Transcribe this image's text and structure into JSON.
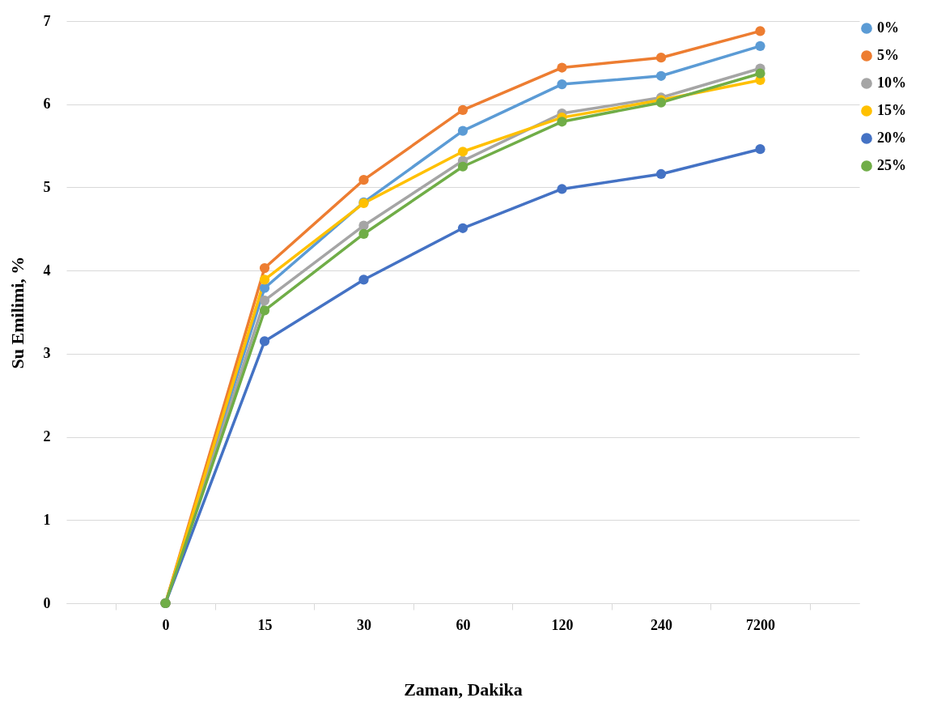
{
  "chart_data": {
    "type": "line",
    "xlabel": "Zaman, Dakika",
    "ylabel": "Su Emilimi, %",
    "categories": [
      "0",
      "15",
      "30",
      "60",
      "120",
      "240",
      "7200"
    ],
    "series": [
      {
        "name": "0%",
        "color": "#5b9bd5",
        "values": [
          0,
          3.79,
          4.82,
          5.68,
          6.24,
          6.34,
          6.7
        ]
      },
      {
        "name": "5%",
        "color": "#ed7d31",
        "values": [
          0,
          4.03,
          5.09,
          5.93,
          6.44,
          6.56,
          6.88
        ]
      },
      {
        "name": "10%",
        "color": "#a5a5a5",
        "values": [
          0,
          3.64,
          4.54,
          5.32,
          5.89,
          6.08,
          6.43
        ]
      },
      {
        "name": "15%",
        "color": "#ffc000",
        "values": [
          0,
          3.89,
          4.81,
          5.43,
          5.84,
          6.05,
          6.29
        ]
      },
      {
        "name": "20%",
        "color": "#4472c4",
        "values": [
          0,
          3.15,
          3.89,
          4.51,
          4.98,
          5.16,
          5.46
        ]
      },
      {
        "name": "25%",
        "color": "#70ad47",
        "values": [
          0,
          3.52,
          4.44,
          5.25,
          5.79,
          6.02,
          6.37
        ]
      }
    ],
    "ylim": [
      0,
      7
    ],
    "yticks": [
      0,
      1,
      2,
      3,
      4,
      5,
      6,
      7
    ],
    "grid": "y",
    "legend": "right",
    "marker": "circle",
    "line_style": "solid"
  }
}
